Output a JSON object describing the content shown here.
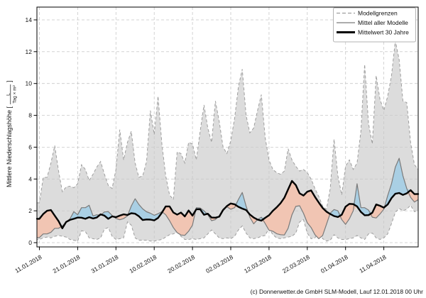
{
  "footer": {
    "caption": "(c) Donnerwetter.de GmbH SLM-Modell, Lauf 12.01.2018 00 Uhr"
  },
  "chart_data": {
    "type": "line",
    "title": "",
    "xlabel": "",
    "ylabel_main": "Mittlere Niederschlagshöhe [",
    "ylabel_unit_numerator": "L",
    "ylabel_unit_denominator": "Tag × m²",
    "ylabel_close_bracket": "]",
    "ylim": [
      0,
      14
    ],
    "yticks": [
      0,
      2,
      4,
      6,
      8,
      10,
      12,
      14
    ],
    "x_tick_labels": [
      "11.01.2018",
      "21.01.2018",
      "31.01.2018",
      "10.02.2018",
      "20.02.2018",
      "02.03.2018",
      "12.03.2018",
      "22.03.2018",
      "01.04.2018",
      "11.04.2018"
    ],
    "x_tick_days": [
      0,
      10,
      20,
      30,
      40,
      50,
      60,
      70,
      80,
      90
    ],
    "n_days": 100,
    "grid": true,
    "legend_position": "top-right",
    "legend": [
      {
        "label": "Modellgrenzen",
        "style": "dashed",
        "color": "#9e9e9e"
      },
      {
        "label": "Mittel aller Modelle",
        "style": "solid",
        "color": "#7a7a7a"
      },
      {
        "label": "Mittelwert 30 Jahre",
        "style": "thick",
        "color": "#000000"
      }
    ],
    "colors": {
      "envelope_fill": "#dcdcdc",
      "envelope_border": "#9e9e9e",
      "above_fill": "#a9cfe4",
      "below_fill": "#f1c5b3",
      "model_mean_line": "#7a7a7a",
      "mean30_line": "#000000",
      "grid": "#c9c9c9",
      "frame": "#000000"
    },
    "series": [
      {
        "name": "Modellgrenzen (max)",
        "values": [
          2.5,
          4.1,
          4.1,
          5.0,
          6.1,
          4.5,
          3.2,
          3.5,
          3.55,
          3.45,
          3.7,
          4.9,
          4.6,
          3.9,
          4.3,
          4.75,
          5.1,
          4.3,
          3.6,
          3.4,
          4.6,
          7.1,
          5.2,
          6.3,
          7.0,
          5.0,
          4.1,
          4.2,
          5.1,
          8.3,
          6.8,
          9.2,
          6.2,
          4.2,
          3.0,
          2.7,
          5.7,
          5.6,
          5.0,
          6.3,
          6.2,
          5.2,
          7.0,
          8.65,
          7.2,
          6.3,
          8.9,
          7.6,
          6.0,
          5.6,
          6.4,
          7.8,
          9.8,
          10.9,
          8.0,
          6.9,
          7.2,
          8.3,
          9.3,
          6.6,
          5.2,
          4.6,
          4.4,
          4.3,
          4.5,
          5.9,
          5.2,
          4.8,
          4.5,
          4.6,
          4.4,
          4.0,
          3.4,
          2.9,
          2.3,
          2.1,
          3.4,
          6.5,
          4.2,
          3.0,
          4.8,
          5.2,
          4.6,
          5.0,
          7.0,
          11.2,
          7.5,
          6.2,
          10.5,
          9.0,
          8.3,
          9.2,
          10.5,
          12.7,
          11.5,
          8.9,
          8.8,
          6.3,
          4.9,
          4.6
        ]
      },
      {
        "name": "Modellgrenzen (min)",
        "values": [
          0.2,
          0.3,
          0.35,
          0.3,
          0.4,
          0.45,
          0.4,
          0.35,
          0.2,
          0.15,
          0.1,
          0.75,
          0.7,
          0.3,
          0.25,
          0.2,
          0.3,
          0.85,
          0.95,
          0.4,
          0.2,
          0.25,
          0.3,
          1.3,
          1.1,
          0.3,
          0.15,
          0.15,
          0.15,
          0.1,
          0.1,
          0.15,
          0.2,
          0.35,
          0.5,
          0.55,
          0.66,
          0.4,
          0.2,
          0.2,
          0.25,
          0.2,
          0.25,
          0.3,
          0.55,
          0.8,
          0.55,
          0.3,
          0.25,
          0.3,
          0.25,
          0.4,
          0.8,
          1.05,
          0.6,
          0.3,
          0.25,
          0.3,
          0.4,
          0.45,
          0.9,
          0.5,
          0.3,
          0.25,
          0.3,
          0.35,
          0.4,
          0.6,
          1.3,
          1.45,
          0.6,
          0.25,
          0.3,
          0.7,
          0.25,
          0.1,
          0.15,
          0.5,
          0.3,
          0.2,
          0.2,
          0.25,
          0.3,
          0.45,
          0.3,
          0.2,
          0.55,
          0.6,
          0.3,
          0.2,
          0.3,
          0.55,
          1.2,
          1.9,
          2.15,
          2.0,
          2.1,
          2.35,
          1.95,
          2.0
        ]
      },
      {
        "name": "Mittel aller Modelle",
        "values": [
          0.32,
          0.55,
          0.55,
          0.65,
          0.9,
          0.9,
          1.05,
          1.3,
          1.5,
          1.95,
          1.75,
          2.2,
          2.2,
          2.35,
          1.68,
          1.75,
          1.72,
          1.93,
          1.95,
          1.71,
          1.52,
          1.44,
          1.51,
          1.68,
          2.3,
          2.76,
          2.4,
          2.12,
          1.94,
          1.85,
          1.72,
          1.82,
          1.95,
          1.75,
          1.38,
          0.95,
          0.63,
          0.48,
          0.46,
          0.72,
          1.1,
          2.2,
          2.18,
          2.0,
          1.75,
          1.38,
          1.45,
          1.7,
          2.1,
          2.25,
          2.1,
          2.2,
          2.72,
          3.15,
          2.3,
          1.6,
          1.18,
          1.45,
          1.6,
          1.2,
          0.78,
          0.72,
          0.56,
          0.5,
          0.48,
          0.9,
          1.75,
          2.28,
          2.32,
          1.85,
          1.25,
          0.95,
          0.5,
          0.25,
          0.45,
          1.15,
          1.85,
          2.08,
          2.0,
          1.45,
          1.15,
          1.5,
          2.0,
          3.7,
          2.2,
          2.2,
          2.05,
          1.6,
          1.55,
          1.8,
          2.1,
          2.95,
          3.7,
          4.75,
          5.3,
          4.2,
          3.4,
          2.85,
          2.55,
          2.7
        ]
      },
      {
        "name": "Mittelwert 30 Jahre",
        "values": [
          1.5,
          1.8,
          2.0,
          2.05,
          1.7,
          1.35,
          0.9,
          1.3,
          1.43,
          1.5,
          1.58,
          1.57,
          1.5,
          1.6,
          1.52,
          1.58,
          1.78,
          1.7,
          1.5,
          1.65,
          1.6,
          1.7,
          1.78,
          1.74,
          1.85,
          1.82,
          1.66,
          1.42,
          1.46,
          1.45,
          1.4,
          1.55,
          1.88,
          2.28,
          2.28,
          1.9,
          1.76,
          1.89,
          1.65,
          2.02,
          1.7,
          2.1,
          2.1,
          1.75,
          1.82,
          1.58,
          1.57,
          1.63,
          2.05,
          2.3,
          2.46,
          2.41,
          2.25,
          2.14,
          2.05,
          1.77,
          1.58,
          1.45,
          1.38,
          1.56,
          1.72,
          2.0,
          2.22,
          2.48,
          2.82,
          3.35,
          3.88,
          3.62,
          3.1,
          2.96,
          3.2,
          3.28,
          2.88,
          2.52,
          2.18,
          1.95,
          1.8,
          1.67,
          1.61,
          1.75,
          2.26,
          2.44,
          2.42,
          2.28,
          1.93,
          1.72,
          1.73,
          1.88,
          2.4,
          2.32,
          2.2,
          2.4,
          2.8,
          3.07,
          3.12,
          3.0,
          3.1,
          3.3,
          3.05,
          3.06
        ]
      }
    ]
  }
}
